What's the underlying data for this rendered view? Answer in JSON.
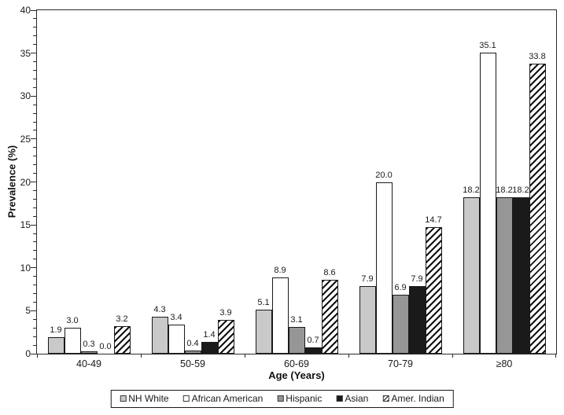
{
  "chart_data": {
    "type": "bar",
    "title": "",
    "xlabel": "Age (Years)",
    "ylabel": "Prevalence (%)",
    "ylim": [
      0,
      40
    ],
    "y_ticks": [
      0,
      5,
      10,
      15,
      20,
      25,
      30,
      35,
      40
    ],
    "y_minor_tick_step": 1,
    "grid": false,
    "legend_position": "bottom",
    "bar_border_color": "#1a1a1a",
    "background_color": "#ffffff",
    "categories": [
      "40-49",
      "50-59",
      "60-69",
      "70-79",
      "≥80"
    ],
    "series": [
      {
        "name": "NH White",
        "fill": "#c9c9c9",
        "pattern": "solid",
        "values": [
          1.9,
          4.3,
          5.1,
          7.9,
          18.2
        ],
        "labels": [
          "1.9",
          "4.3",
          "5.1",
          "7.9",
          "18.2"
        ]
      },
      {
        "name": "African American",
        "fill": "#ffffff",
        "pattern": "solid",
        "values": [
          3.0,
          3.4,
          8.9,
          20.0,
          35.1
        ],
        "labels": [
          "3.0",
          "3.4",
          "8.9",
          "20.0",
          "35.1"
        ]
      },
      {
        "name": "Hispanic",
        "fill": "#969696",
        "pattern": "solid",
        "values": [
          0.3,
          0.4,
          3.1,
          6.9,
          18.2
        ],
        "labels": [
          "0.3",
          "0.4",
          "3.1",
          "6.9",
          "18.2"
        ]
      },
      {
        "name": "Asian",
        "fill": "#1a1a1a",
        "pattern": "solid",
        "values": [
          0.0,
          1.4,
          0.7,
          7.9,
          18.2
        ],
        "labels": [
          "0.0",
          "1.4",
          "0.7",
          "7.9",
          "18.2"
        ]
      },
      {
        "name": "Amer. Indian",
        "fill": "#ffffff",
        "pattern": "diagonal-hatch",
        "values": [
          3.2,
          3.9,
          8.6,
          14.7,
          33.8
        ],
        "labels": [
          "3.2",
          "3.9",
          "8.6",
          "14.7",
          "33.8"
        ]
      }
    ]
  }
}
